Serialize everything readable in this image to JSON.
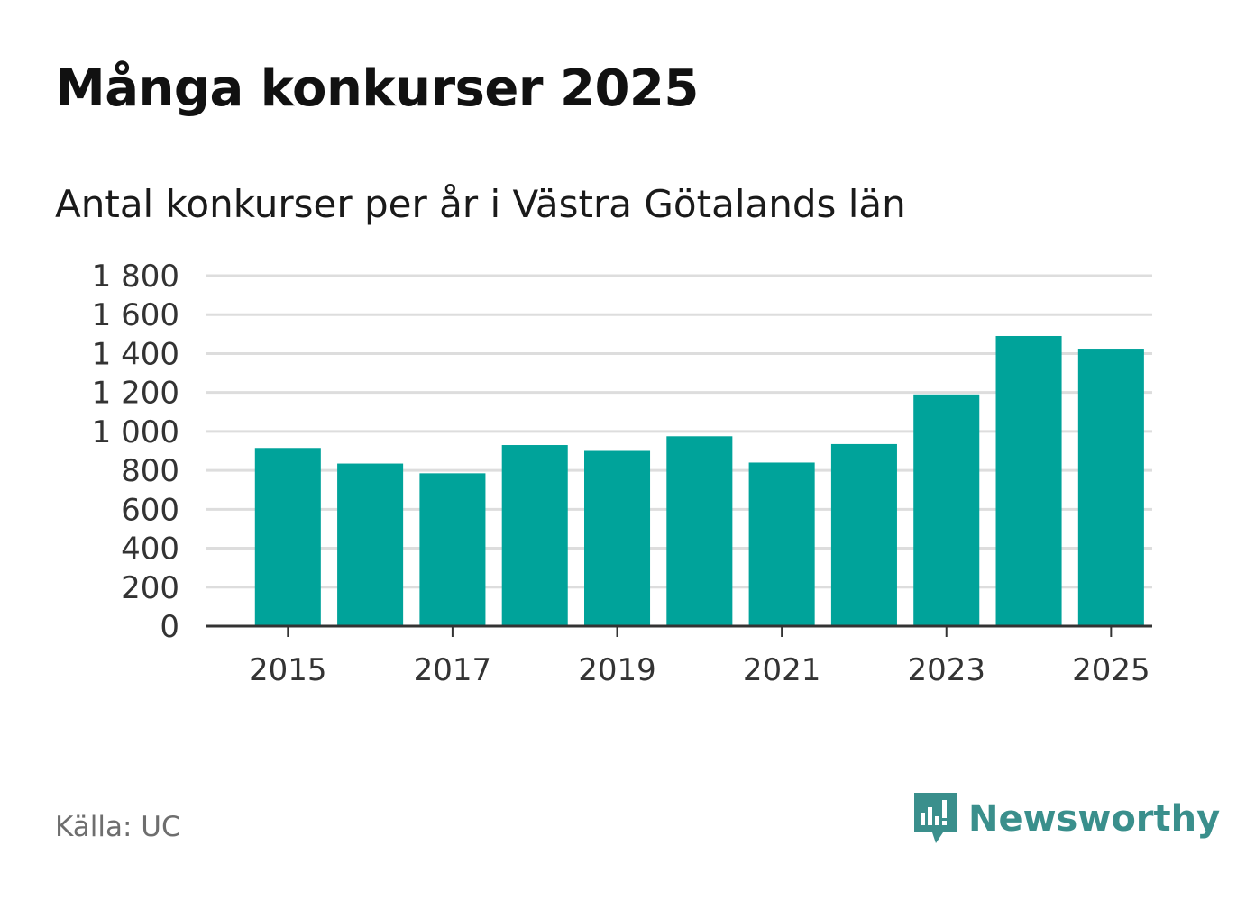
{
  "header": {
    "title": "Många konkurser 2025",
    "subtitle": "Antal konkurser per år i Västra Götalands län"
  },
  "footer": {
    "source": "Källa: UC",
    "brand": "Newsworthy"
  },
  "colors": {
    "bar": "#00a39a",
    "grid": "#dddddd",
    "axis": "#333333",
    "brand": "#3a8f8c"
  },
  "chart_data": {
    "type": "bar",
    "title": "Många konkurser 2025",
    "subtitle": "Antal konkurser per år i Västra Götalands län",
    "categories": [
      2015,
      2016,
      2017,
      2018,
      2019,
      2020,
      2021,
      2022,
      2023,
      2024,
      2025
    ],
    "values": [
      915,
      835,
      785,
      930,
      900,
      975,
      840,
      935,
      1190,
      1490,
      1425
    ],
    "xtick_labels": [
      "2015",
      "2017",
      "2019",
      "2021",
      "2023",
      "2025"
    ],
    "yticks": [
      0,
      200,
      400,
      600,
      800,
      1000,
      1200,
      1400,
      1600,
      1800
    ],
    "ytick_labels": [
      "0",
      "200",
      "400",
      "600",
      "800",
      "1 000",
      "1 200",
      "1 400",
      "1 600",
      "1 800"
    ],
    "ylim": [
      0,
      1800
    ],
    "xlabel": "",
    "ylabel": "",
    "grid": true
  }
}
